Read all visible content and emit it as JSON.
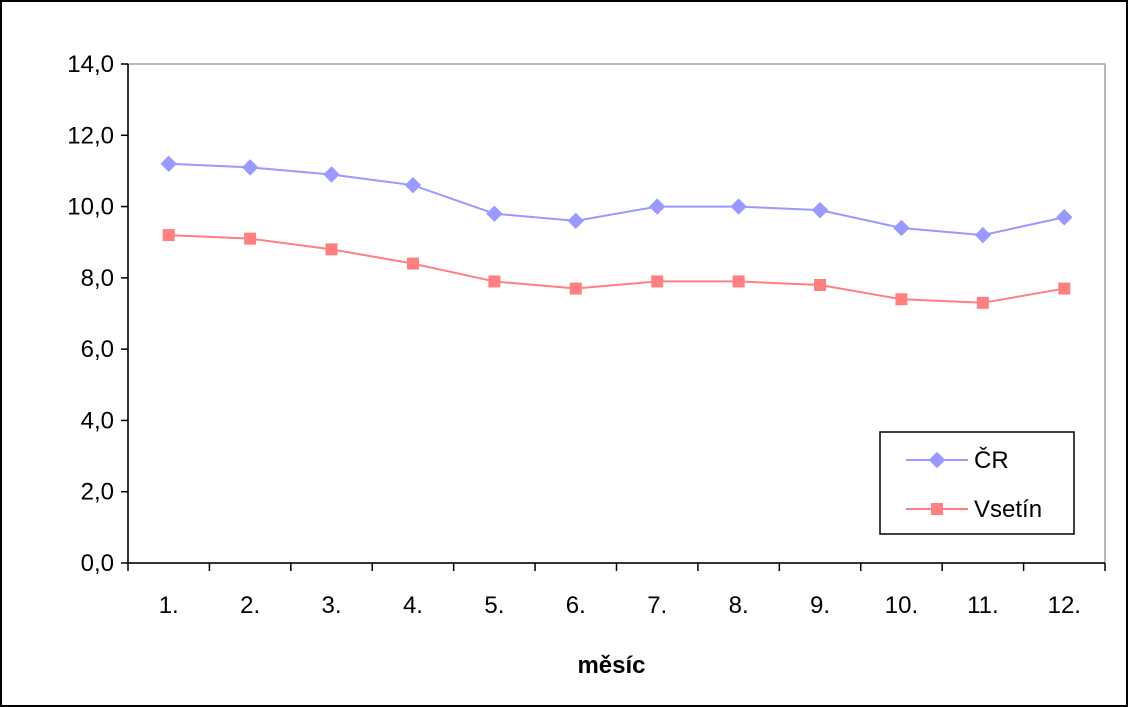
{
  "chart_data": {
    "type": "line",
    "title": "",
    "xlabel": "měsíc",
    "ylabel": "",
    "categories": [
      "1.",
      "2.",
      "3.",
      "4.",
      "5.",
      "6.",
      "7.",
      "8.",
      "9.",
      "10.",
      "11.",
      "12."
    ],
    "ylim": [
      0,
      14
    ],
    "y_ticks": [
      "0,0",
      "2,0",
      "4,0",
      "6,0",
      "8,0",
      "10,0",
      "12,0",
      "14,0"
    ],
    "grid": false,
    "legend_position": "bottom-right",
    "series": [
      {
        "name": "ČR",
        "color": "#9999ff",
        "marker": "diamond",
        "values": [
          11.2,
          11.1,
          10.9,
          10.6,
          9.8,
          9.6,
          10.0,
          10.0,
          9.9,
          9.4,
          9.2,
          9.7
        ]
      },
      {
        "name": "Vsetín",
        "color": "#ff8080",
        "marker": "square",
        "values": [
          9.2,
          9.1,
          8.8,
          8.4,
          7.9,
          7.7,
          7.9,
          7.9,
          7.8,
          7.4,
          7.3,
          7.7
        ]
      }
    ]
  }
}
